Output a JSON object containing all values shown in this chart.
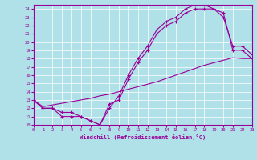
{
  "line_color": "#990099",
  "bg_color": "#b0e0e8",
  "xlabel": "Windchill (Refroidissement éolien,°C)",
  "xlim": [
    0,
    23
  ],
  "ylim": [
    10,
    24.5
  ],
  "curve1_x": [
    0,
    1,
    2,
    3,
    4,
    5,
    6,
    7,
    8,
    9,
    10,
    11,
    12,
    13,
    14,
    15,
    16,
    17,
    18,
    19,
    20,
    21,
    22,
    23
  ],
  "curve1_y": [
    13,
    12,
    12,
    11,
    11,
    11,
    10.5,
    10,
    12.5,
    13,
    15.5,
    17.5,
    19,
    21,
    22,
    22.5,
    23.5,
    24,
    24,
    24,
    23.5,
    19,
    19,
    18
  ],
  "curve2_x": [
    0,
    1,
    2,
    3,
    4,
    5,
    6,
    7,
    8,
    9,
    10,
    11,
    12,
    13,
    14,
    15,
    16,
    17,
    18,
    19,
    20,
    21,
    22,
    23
  ],
  "curve2_y": [
    13,
    12,
    12,
    11.5,
    11.5,
    11,
    10.5,
    10,
    12,
    13.5,
    16,
    18,
    19.5,
    21.5,
    22.5,
    23,
    24,
    24.5,
    24.5,
    24,
    23,
    19.5,
    19.5,
    18.5
  ],
  "curve3_x": [
    0,
    1,
    2,
    3,
    4,
    5,
    6,
    7,
    8,
    9,
    10,
    11,
    12,
    13,
    14,
    15,
    16,
    17,
    18,
    19,
    20,
    21,
    22,
    23
  ],
  "curve3_y": [
    13,
    12.2,
    12.4,
    12.6,
    12.8,
    13.0,
    13.2,
    13.5,
    13.7,
    14.0,
    14.3,
    14.6,
    14.9,
    15.2,
    15.6,
    16.0,
    16.4,
    16.8,
    17.2,
    17.5,
    17.8,
    18.1,
    18.0,
    18.0
  ]
}
